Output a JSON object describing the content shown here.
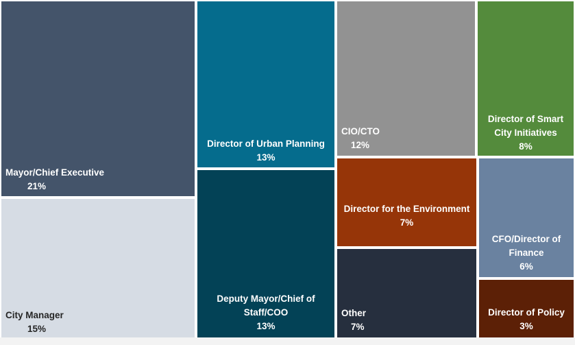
{
  "chart_data": {
    "type": "treemap",
    "items": [
      {
        "label": "Mayor/Chief Executive",
        "value": "21%",
        "share": 21,
        "color": "#44546a"
      },
      {
        "label": "City Manager",
        "value": "15%",
        "share": 15,
        "color": "#d6dce4"
      },
      {
        "label": "Director of Urban Planning",
        "value": "13%",
        "share": 13,
        "color": "#056c8d"
      },
      {
        "label": "Deputy Mayor/Chief of Staff/COO",
        "value": "13%",
        "share": 13,
        "color": "#034256"
      },
      {
        "label": "CIO/CTO",
        "value": "12%",
        "share": 12,
        "color": "#929292"
      },
      {
        "label": "Director of Smart City Initiatives",
        "value": "8%",
        "share": 8,
        "color": "#548b3c"
      },
      {
        "label": "Director for the Environment",
        "value": "7%",
        "share": 7,
        "color": "#963508"
      },
      {
        "label": "Other",
        "value": "7%",
        "share": 7,
        "color": "#262f3e"
      },
      {
        "label": "CFO/Director of Finance",
        "value": "6%",
        "share": 6,
        "color": "#6a82a0"
      },
      {
        "label": "Director of Policy",
        "value": "3%",
        "share": 3,
        "color": "#5c2006"
      }
    ]
  }
}
